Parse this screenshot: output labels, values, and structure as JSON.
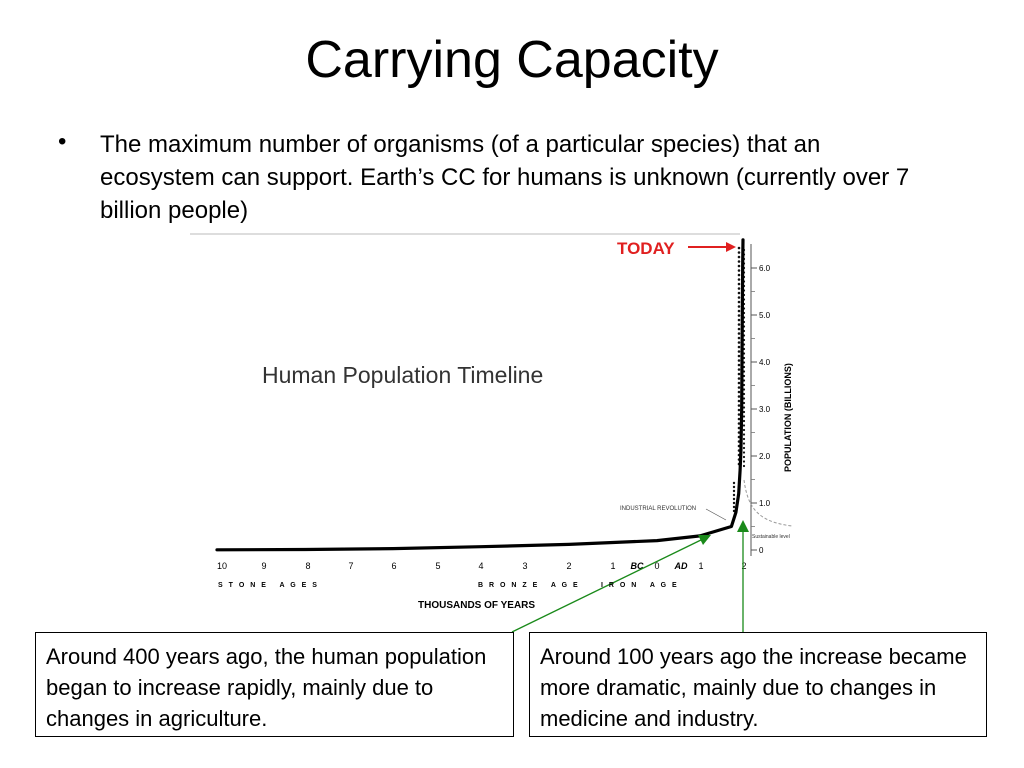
{
  "slide": {
    "title": "Carrying Capacity",
    "bullet_char": "•",
    "bullet_text": "The maximum number of organisms (of a particular species) that an ecosystem can support. Earth’s CC for humans is unknown (currently over 7 billion people)"
  },
  "chart_data": {
    "type": "line",
    "title": "Human Population Timeline",
    "xlabel": "THOUSANDS OF YEARS",
    "ylabel": "POPULATION (BILLIONS)",
    "x_ticks": [
      "10",
      "9",
      "8",
      "7",
      "6",
      "5",
      "4",
      "3",
      "2",
      "1",
      "BC",
      "0",
      "AD",
      "1",
      "2"
    ],
    "y_ticks": [
      "0",
      "1.0",
      "2.0",
      "3.0",
      "4.0",
      "5.0",
      "6.0"
    ],
    "ylim": [
      0,
      6.5
    ],
    "eras": [
      "S T O N E   A G E S",
      "B R O N Z E   A G E",
      "I R O N   A G E"
    ],
    "annotations": {
      "today": "TODAY",
      "industrial_revolution": "INDUSTRIAL REVOLUTION",
      "sustainable_level": "Sustainable level"
    },
    "series": [
      {
        "points": [
          {
            "year": -10000,
            "pop": 0.005
          },
          {
            "year": -8000,
            "pop": 0.01
          },
          {
            "year": -6000,
            "pop": 0.03
          },
          {
            "year": -4000,
            "pop": 0.07
          },
          {
            "year": -2000,
            "pop": 0.12
          },
          {
            "year": -1000,
            "pop": 0.16
          },
          {
            "year": 0,
            "pop": 0.2
          },
          {
            "year": 1000,
            "pop": 0.3
          },
          {
            "year": 1600,
            "pop": 0.5
          },
          {
            "year": 1750,
            "pop": 0.8
          },
          {
            "year": 1850,
            "pop": 1.2
          },
          {
            "year": 1900,
            "pop": 1.7
          },
          {
            "year": 1930,
            "pop": 2.1
          },
          {
            "year": 1960,
            "pop": 3.0
          },
          {
            "year": 1975,
            "pop": 4.0
          },
          {
            "year": 1990,
            "pop": 5.3
          },
          {
            "year": 2000,
            "pop": 6.1
          },
          {
            "year": 2012,
            "pop": 6.6
          }
        ]
      }
    ]
  },
  "callouts": {
    "left": "Around 400 years ago, the human population began to increase rapidly, mainly due to changes in agriculture.",
    "right": "Around 100 years ago the increase became more dramatic, mainly due to changes in medicine and industry."
  },
  "colors": {
    "today_red": "#e02020",
    "arrow_green": "#1a8a1a",
    "line": "#000000"
  }
}
